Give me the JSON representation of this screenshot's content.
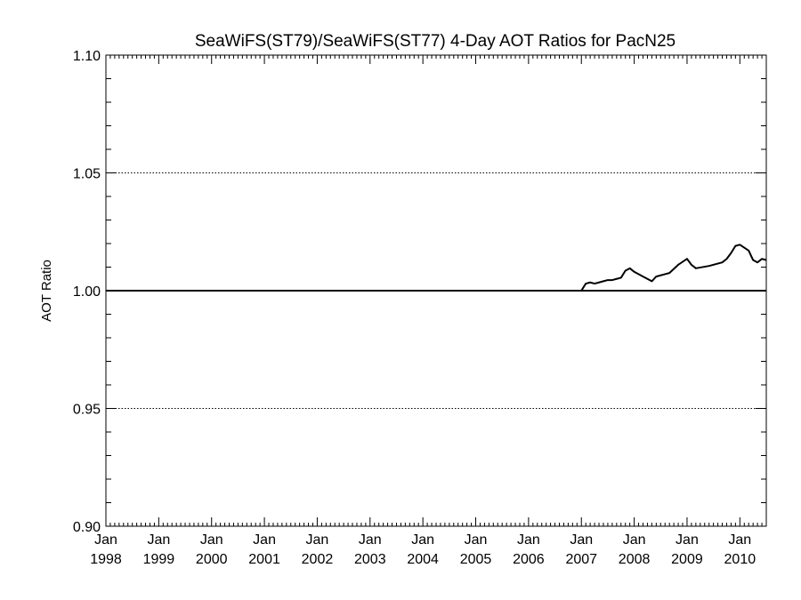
{
  "chart_data": {
    "type": "line",
    "title": "SeaWiFS(ST79)/SeaWiFS(ST77) 4-Day AOT Ratios for PacN25",
    "xlabel": "",
    "ylabel": "AOT Ratio",
    "ylim": [
      0.9,
      1.1
    ],
    "xlim": [
      "1998-01",
      "2010-07"
    ],
    "y_ticks": [
      "0.90",
      "0.95",
      "1.00",
      "1.05",
      "1.10"
    ],
    "x_ticks": [
      {
        "month": "Jan",
        "year": "1998"
      },
      {
        "month": "Jan",
        "year": "1999"
      },
      {
        "month": "Jan",
        "year": "2000"
      },
      {
        "month": "Jan",
        "year": "2001"
      },
      {
        "month": "Jan",
        "year": "2002"
      },
      {
        "month": "Jan",
        "year": "2003"
      },
      {
        "month": "Jan",
        "year": "2004"
      },
      {
        "month": "Jan",
        "year": "2005"
      },
      {
        "month": "Jan",
        "year": "2006"
      },
      {
        "month": "Jan",
        "year": "2007"
      },
      {
        "month": "Jan",
        "year": "2008"
      },
      {
        "month": "Jan",
        "year": "2009"
      },
      {
        "month": "Jan",
        "year": "2010"
      }
    ],
    "grid": "dotted at 0.95 and 1.05",
    "reference_line": 1.0,
    "series": [
      {
        "points": [
          {
            "x": "2007-01",
            "y": 1.0
          },
          {
            "x": "2007-02",
            "y": 1.003
          },
          {
            "x": "2007-03",
            "y": 1.0035
          },
          {
            "x": "2007-04",
            "y": 1.003
          },
          {
            "x": "2007-05",
            "y": 1.0035
          },
          {
            "x": "2007-06",
            "y": 1.004
          },
          {
            "x": "2007-07",
            "y": 1.0045
          },
          {
            "x": "2007-08",
            "y": 1.0045
          },
          {
            "x": "2007-09",
            "y": 1.005
          },
          {
            "x": "2007-10",
            "y": 1.0055
          },
          {
            "x": "2007-11",
            "y": 1.0085
          },
          {
            "x": "2007-12",
            "y": 1.0095
          },
          {
            "x": "2008-01",
            "y": 1.008
          },
          {
            "x": "2008-03",
            "y": 1.006
          },
          {
            "x": "2008-05",
            "y": 1.004
          },
          {
            "x": "2008-06",
            "y": 1.006
          },
          {
            "x": "2008-08",
            "y": 1.007
          },
          {
            "x": "2008-09",
            "y": 1.0075
          },
          {
            "x": "2008-11",
            "y": 1.011
          },
          {
            "x": "2009-01",
            "y": 1.0135
          },
          {
            "x": "2009-02",
            "y": 1.011
          },
          {
            "x": "2009-03",
            "y": 1.0095
          },
          {
            "x": "2009-06",
            "y": 1.0105
          },
          {
            "x": "2009-09",
            "y": 1.012
          },
          {
            "x": "2009-10",
            "y": 1.0135
          },
          {
            "x": "2009-11",
            "y": 1.016
          },
          {
            "x": "2009-12",
            "y": 1.019
          },
          {
            "x": "2010-01",
            "y": 1.0195
          },
          {
            "x": "2010-03",
            "y": 1.017
          },
          {
            "x": "2010-04",
            "y": 1.013
          },
          {
            "x": "2010-05",
            "y": 1.012
          },
          {
            "x": "2010-06",
            "y": 1.0135
          },
          {
            "x": "2010-07",
            "y": 1.013
          }
        ]
      }
    ]
  }
}
